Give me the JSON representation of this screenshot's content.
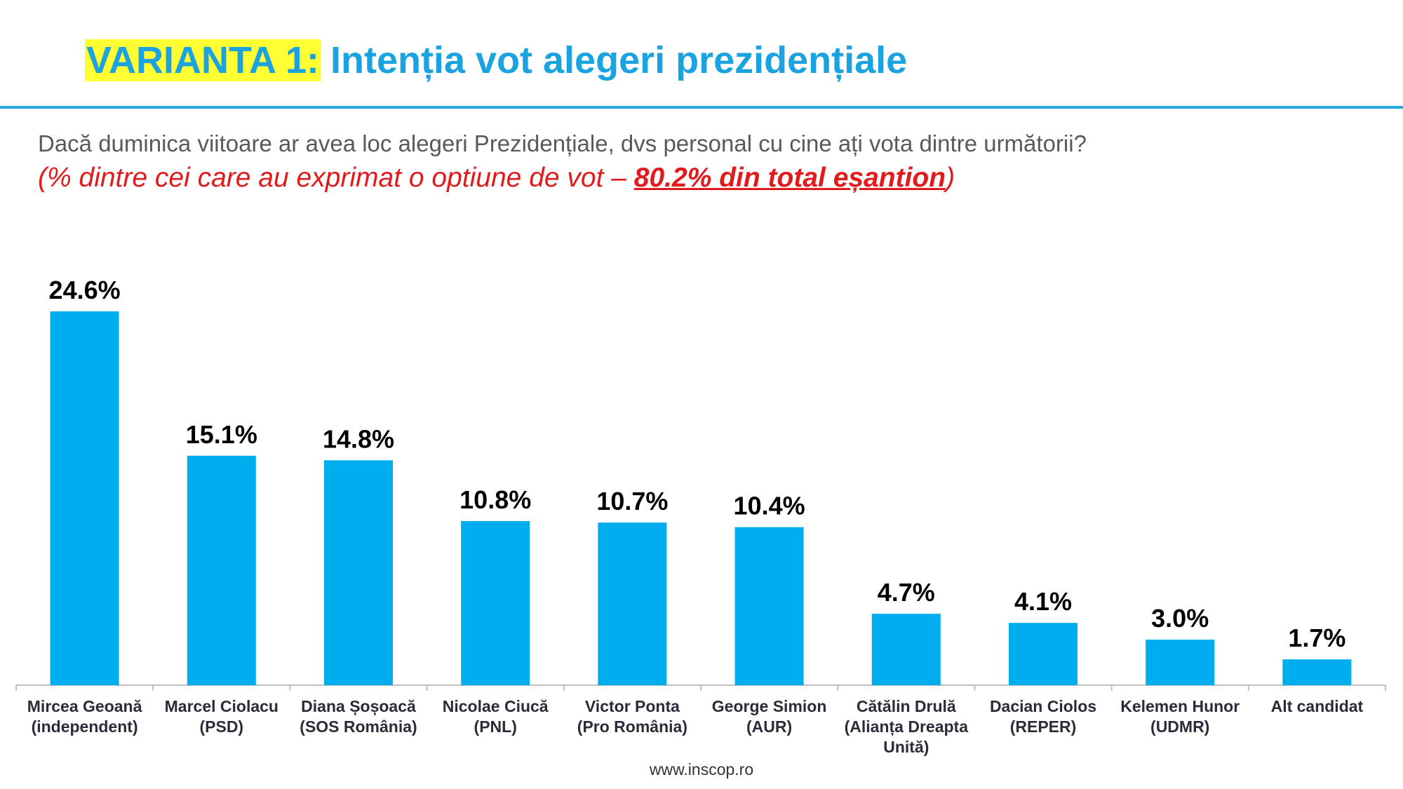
{
  "chart_data": {
    "type": "bar",
    "title_highlight": "VARIANTA 1:",
    "title": "Intenția vot alegeri prezidențiale",
    "subtitle": "Dacă duminica viitoare ar avea loc alegeri Prezidențiale, dvs personal cu cine ați vota dintre următorii?",
    "note_start": "(% dintre cei care au exprimat o optiune de vot – ",
    "note_emphasis": "80.2% din total eșantion",
    "note_end": ")",
    "categories": [
      [
        "Mircea Geoană",
        "(independent)"
      ],
      [
        "Marcel Ciolacu",
        "(PSD)"
      ],
      [
        "Diana Șoșoacă",
        "(SOS România)"
      ],
      [
        "Nicolae Ciucă",
        "(PNL)"
      ],
      [
        "Victor Ponta",
        "(Pro România)"
      ],
      [
        "George Simion",
        "(AUR)"
      ],
      [
        "Cătălin Drulă",
        "(Alianța Dreapta",
        "Unită)"
      ],
      [
        "Dacian Ciolos",
        "(REPER)"
      ],
      [
        "Kelemen Hunor",
        "(UDMR)"
      ],
      [
        "Alt candidat"
      ]
    ],
    "values": [
      24.6,
      15.1,
      14.8,
      10.8,
      10.7,
      10.4,
      4.7,
      4.1,
      3.0,
      1.7
    ],
    "value_labels": [
      "24.6%",
      "15.1%",
      "14.8%",
      "10.8%",
      "10.7%",
      "10.4%",
      "4.7%",
      "4.1%",
      "3.0%",
      "1.7%"
    ],
    "color": "#00adef",
    "source": "www.inscop.ro"
  }
}
